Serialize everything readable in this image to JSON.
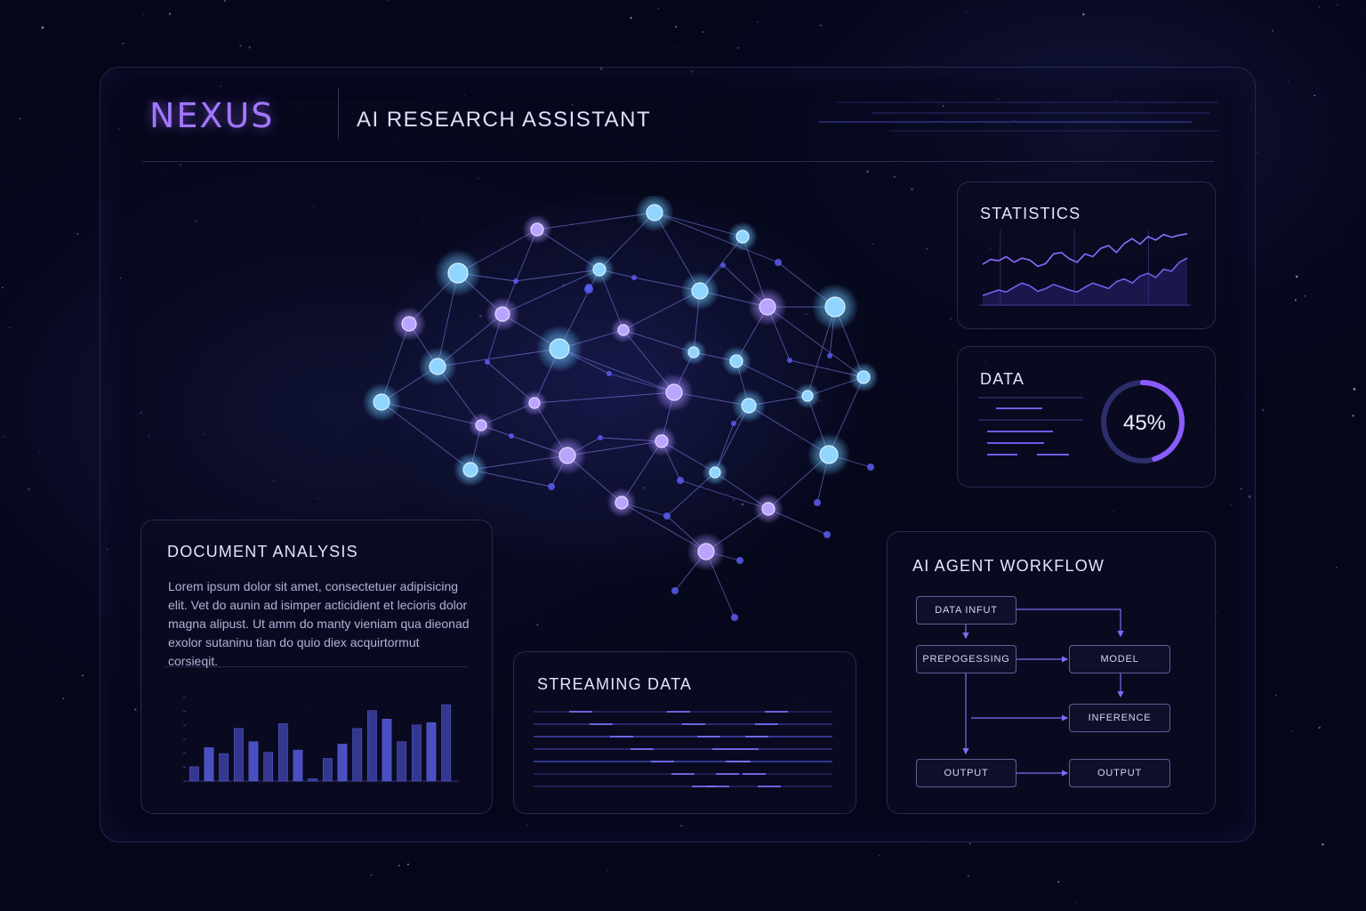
{
  "header": {
    "logo": "NEXUS",
    "subtitle": "AI RESEARCH ASSISTANT"
  },
  "statistics": {
    "title": "STATISTICS",
    "chart_data": {
      "type": "line",
      "series": [
        {
          "values": [
            55,
            62,
            60,
            66,
            58,
            64,
            61,
            52,
            56,
            70,
            72,
            63,
            58,
            70,
            66,
            78,
            82,
            72,
            85,
            92,
            84,
            95,
            90,
            98,
            94,
            97,
            99
          ]
        },
        {
          "values": [
            10,
            14,
            18,
            15,
            22,
            28,
            24,
            16,
            20,
            26,
            22,
            18,
            15,
            22,
            28,
            24,
            20,
            30,
            34,
            28,
            38,
            42,
            36,
            48,
            45,
            58,
            64
          ]
        }
      ],
      "ylim": [
        0,
        100
      ]
    }
  },
  "data_panel": {
    "title": "DATA",
    "progress_percent": 45,
    "progress_label": "45%"
  },
  "document_analysis": {
    "title": "DOCUMENT ANALYSIS",
    "text": "Lorem ipsum dolor sit amet, consectetuer adipisicing elit. Vet do aunin ad isimper acticidient et lecioris dolor magna alipust. Ut amm do manty vieniam qua dieonad exolor sutaninu tian do quio diex acquirtormut corsieqit.",
    "chart_data": {
      "type": "bar",
      "values": [
        1.2,
        2.8,
        2.3,
        4.4,
        3.3,
        2.4,
        4.8,
        2.6,
        0.2,
        1.9,
        3.1,
        4.4,
        5.9,
        5.2,
        3.3,
        4.7,
        4.9,
        6.4
      ],
      "ylim": [
        0,
        7
      ]
    }
  },
  "streaming": {
    "title": "STREAMING DATA"
  },
  "workflow": {
    "title": "AI AGENT WORKFLOW",
    "nodes": {
      "data_input": "DATA INFUT",
      "preprocessing": "PREPOGESSING",
      "model": "MODEL",
      "inference": "INFERENCE",
      "output_left": "OUTPUT",
      "output_right": "OUTPUT"
    }
  },
  "colors": {
    "accent": "#a277ff",
    "node_cyan": "#7fd3ff",
    "node_violet": "#b49bff",
    "line": "#6f63e0"
  },
  "icons": [
    "neural-network-graphic"
  ]
}
